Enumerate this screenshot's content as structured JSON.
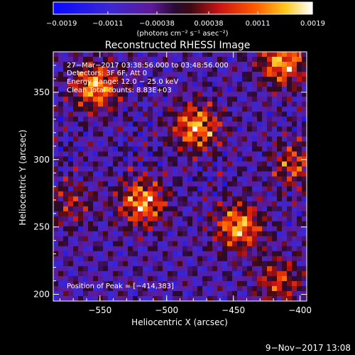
{
  "chart_data": {
    "type": "heatmap",
    "title": "Reconstructed RHESSI Image",
    "xlabel": "Heliocentric X (arcsec)",
    "ylabel": "Heliocentric Y (arcsec)",
    "xlim": [
      -585,
      -395
    ],
    "ylim": [
      195,
      380
    ],
    "xticks": [
      -550,
      -500,
      -450,
      -400
    ],
    "yticks": [
      200,
      250,
      300,
      350
    ],
    "xtick_labels": [
      "−550",
      "−500",
      "−450",
      "−400"
    ],
    "ytick_labels": [
      "200",
      "250",
      "300",
      "350"
    ],
    "colorbar": {
      "range": [
        -0.0019,
        0.0019
      ],
      "ticks": [
        -0.0019,
        -0.0011,
        -0.00038,
        0.00038,
        0.0011,
        0.0019
      ],
      "tick_labels": [
        "−0.0019",
        "−0.0011",
        "−0.00038",
        "0.00038",
        "0.0011",
        "0.0019"
      ],
      "unit_label": "(photons cm⁻² s⁻¹ asec⁻²)",
      "colormap": "blue-purple-red-orange-yellow-white"
    },
    "sources": [
      {
        "x": -553,
        "y": 354,
        "peak": 0.0019
      },
      {
        "x": -413,
        "y": 372,
        "peak": 0.0019
      },
      {
        "x": -478,
        "y": 324,
        "peak": 0.0019
      },
      {
        "x": -518,
        "y": 268,
        "peak": 0.0019
      },
      {
        "x": -446,
        "y": 250,
        "peak": 0.0019
      },
      {
        "x": -404,
        "y": 296,
        "peak": 0.0012
      },
      {
        "x": -416,
        "y": 210,
        "peak": 0.0012
      },
      {
        "x": -572,
        "y": 268,
        "peak": 0.0008
      }
    ],
    "info_lines": [
      "27−Mar−2017 03:38:56.000 to 03:48:56.000",
      "Detectors: 3F 6F, Att 0",
      "Energy Range: 12.0 − 25.0 keV",
      "Clean    Total counts: 8.83E+03"
    ],
    "peak_annotation": "Position of Peak = [−414,383]"
  },
  "footer": {
    "timestamp": "9−Nov−2017 13:08"
  }
}
